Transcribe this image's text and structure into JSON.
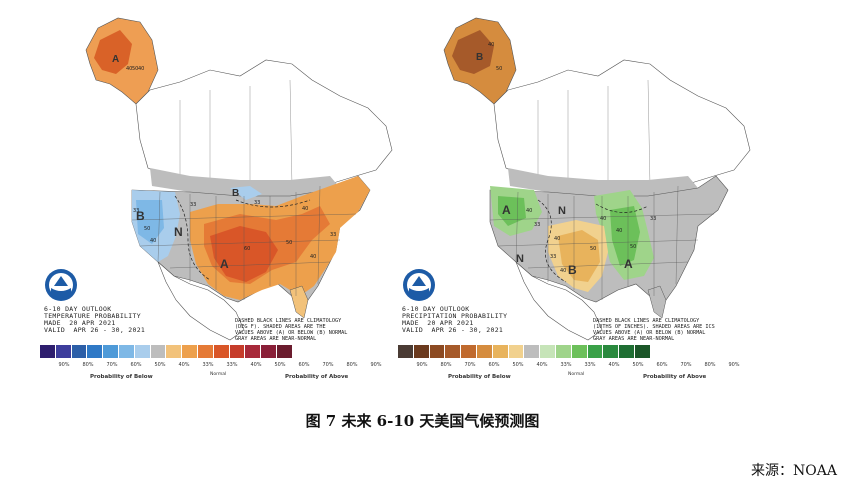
{
  "figure": {
    "caption": "图 7 未来 6-10 天美国气候预测图",
    "source": "来源：NOAA"
  },
  "temperature_panel": {
    "title_lines": [
      "6-10 DAY OUTLOOK",
      "TEMPERATURE PROBABILITY",
      "MADE  20 APR 2021",
      "VALID  APR 26 - 30, 2021"
    ],
    "legend_note": "DASHED BLACK LINES ARE CLIMATOLOGY\n(DEG F). SHADED AREAS ARE THE\nVALUES ABOVE (A) OR BELOW (B) NORMAL\nGRAY AREAS ARE NEAR-NORMAL",
    "below_label": "Probability of Below",
    "normal_label": "Normal",
    "above_label": "Probability of Above",
    "tick_labels": [
      "90%",
      "80%",
      "70%",
      "60%",
      "50%",
      "40%",
      "33%",
      "33%",
      "40%",
      "50%",
      "60%",
      "70%",
      "80%",
      "90%"
    ],
    "map_letters": [
      "A",
      "B",
      "N",
      "A",
      "B"
    ],
    "contour_numbers": [
      "40",
      "50",
      "40",
      "33",
      "50",
      "40",
      "33",
      "33",
      "40",
      "60",
      "50",
      "40",
      "33"
    ],
    "colors": [
      "#2e1e6e",
      "#3d3d9c",
      "#2c5fa8",
      "#2f79c6",
      "#4e9ad8",
      "#7eb8e6",
      "#a9cdec",
      "#bdbdbd",
      "#f2c27a",
      "#eda04c",
      "#e57a36",
      "#d95628",
      "#c63c2a",
      "#a7293a",
      "#8a1f38",
      "#6b1c2e"
    ]
  },
  "precip_panel": {
    "title_lines": [
      "6-10 DAY OUTLOOK",
      "PRECIPITATION PROBABILITY",
      "MADE  20 APR 2021",
      "VALID  APR 26 - 30, 2021"
    ],
    "legend_note": "DASHED BLACK LINES ARE CLIMATOLOGY\n(10THS OF INCHES). SHADED AREAS ARE ICS\nVALUES ABOVE (A) OR BELOW (B) NORMAL\nGRAY AREAS ARE NEAR-NORMAL",
    "below_label": "Probability of Below",
    "normal_label": "Normal",
    "above_label": "Probability of Above",
    "tick_labels": [
      "90%",
      "80%",
      "70%",
      "60%",
      "50%",
      "40%",
      "33%",
      "33%",
      "40%",
      "50%",
      "60%",
      "70%",
      "80%",
      "90%"
    ],
    "map_letters": [
      "B",
      "A",
      "N",
      "N",
      "B",
      "A"
    ],
    "contour_numbers": [
      "40",
      "50",
      "40",
      "33",
      "40",
      "33",
      "40",
      "50",
      "40",
      "33",
      "40",
      "50"
    ],
    "colors": [
      "#4a3b34",
      "#6b3a1e",
      "#8c4a22",
      "#a65a2a",
      "#c06a2e",
      "#d58c3e",
      "#e8b35c",
      "#f1d18e",
      "#bdbdbd",
      "#c6e4b8",
      "#9fd48a",
      "#6cc05a",
      "#3aa148",
      "#2a8a3e",
      "#1f6f33",
      "#1b5628"
    ]
  }
}
